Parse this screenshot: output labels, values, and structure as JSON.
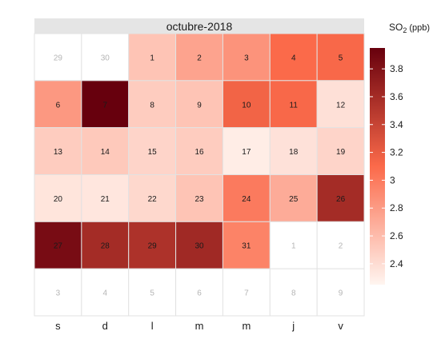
{
  "chart_data": {
    "type": "heatmap",
    "title": "octubre-2018",
    "legend_title": "SO",
    "legend_title_sub": "2",
    "legend_title_unit": "(ppb)",
    "legend_placement": "right",
    "weekday_labels": [
      "s",
      "d",
      "l",
      "m",
      "m",
      "j",
      "v"
    ],
    "color_scale": {
      "min": 2.25,
      "max": 3.95,
      "low_color": "#fff5f0",
      "mid_color": "#fb6a4a",
      "high_color": "#67000d",
      "ticks": [
        {
          "value": 2.4,
          "label": "2.4"
        },
        {
          "value": 2.6,
          "label": "2.6"
        },
        {
          "value": 2.8,
          "label": "2.8"
        },
        {
          "value": 3.0,
          "label": "3"
        },
        {
          "value": 3.2,
          "label": "3.2"
        },
        {
          "value": 3.4,
          "label": "3.4"
        },
        {
          "value": 3.6,
          "label": "3.6"
        },
        {
          "value": 3.8,
          "label": "3.8"
        }
      ]
    },
    "weeks": [
      [
        {
          "day": "29",
          "in_month": false
        },
        {
          "day": "30",
          "in_month": false
        },
        {
          "day": "1",
          "in_month": true,
          "value": 2.55
        },
        {
          "day": "2",
          "in_month": true,
          "value": 2.75
        },
        {
          "day": "3",
          "in_month": true,
          "value": 2.85
        },
        {
          "day": "4",
          "in_month": true,
          "value": 3.1
        },
        {
          "day": "5",
          "in_month": true,
          "value": 3.12
        }
      ],
      [
        {
          "day": "6",
          "in_month": true,
          "value": 2.82
        },
        {
          "day": "7",
          "in_month": true,
          "value": 3.95
        },
        {
          "day": "8",
          "in_month": true,
          "value": 2.5
        },
        {
          "day": "9",
          "in_month": true,
          "value": 2.55
        },
        {
          "day": "10",
          "in_month": true,
          "value": 3.15
        },
        {
          "day": "11",
          "in_month": true,
          "value": 3.12
        },
        {
          "day": "12",
          "in_month": true,
          "value": 2.38
        }
      ],
      [
        {
          "day": "13",
          "in_month": true,
          "value": 2.5
        },
        {
          "day": "14",
          "in_month": true,
          "value": 2.52
        },
        {
          "day": "15",
          "in_month": true,
          "value": 2.45
        },
        {
          "day": "16",
          "in_month": true,
          "value": 2.5
        },
        {
          "day": "17",
          "in_month": true,
          "value": 2.3
        },
        {
          "day": "18",
          "in_month": true,
          "value": 2.37
        },
        {
          "day": "19",
          "in_month": true,
          "value": 2.45
        }
      ],
      [
        {
          "day": "20",
          "in_month": true,
          "value": 2.35
        },
        {
          "day": "21",
          "in_month": true,
          "value": 2.34
        },
        {
          "day": "22",
          "in_month": true,
          "value": 2.43
        },
        {
          "day": "23",
          "in_month": true,
          "value": 2.55
        },
        {
          "day": "24",
          "in_month": true,
          "value": 3.0
        },
        {
          "day": "25",
          "in_month": true,
          "value": 2.7
        },
        {
          "day": "26",
          "in_month": true,
          "value": 3.6
        }
      ],
      [
        {
          "day": "27",
          "in_month": true,
          "value": 3.85
        },
        {
          "day": "28",
          "in_month": true,
          "value": 3.6
        },
        {
          "day": "29",
          "in_month": true,
          "value": 3.55
        },
        {
          "day": "30",
          "in_month": true,
          "value": 3.62
        },
        {
          "day": "31",
          "in_month": true,
          "value": 2.95
        },
        {
          "day": "1",
          "in_month": false
        },
        {
          "day": "2",
          "in_month": false
        }
      ],
      [
        {
          "day": "3",
          "in_month": false
        },
        {
          "day": "4",
          "in_month": false
        },
        {
          "day": "5",
          "in_month": false
        },
        {
          "day": "6",
          "in_month": false
        },
        {
          "day": "7",
          "in_month": false
        },
        {
          "day": "8",
          "in_month": false
        },
        {
          "day": "9",
          "in_month": false
        }
      ]
    ]
  }
}
